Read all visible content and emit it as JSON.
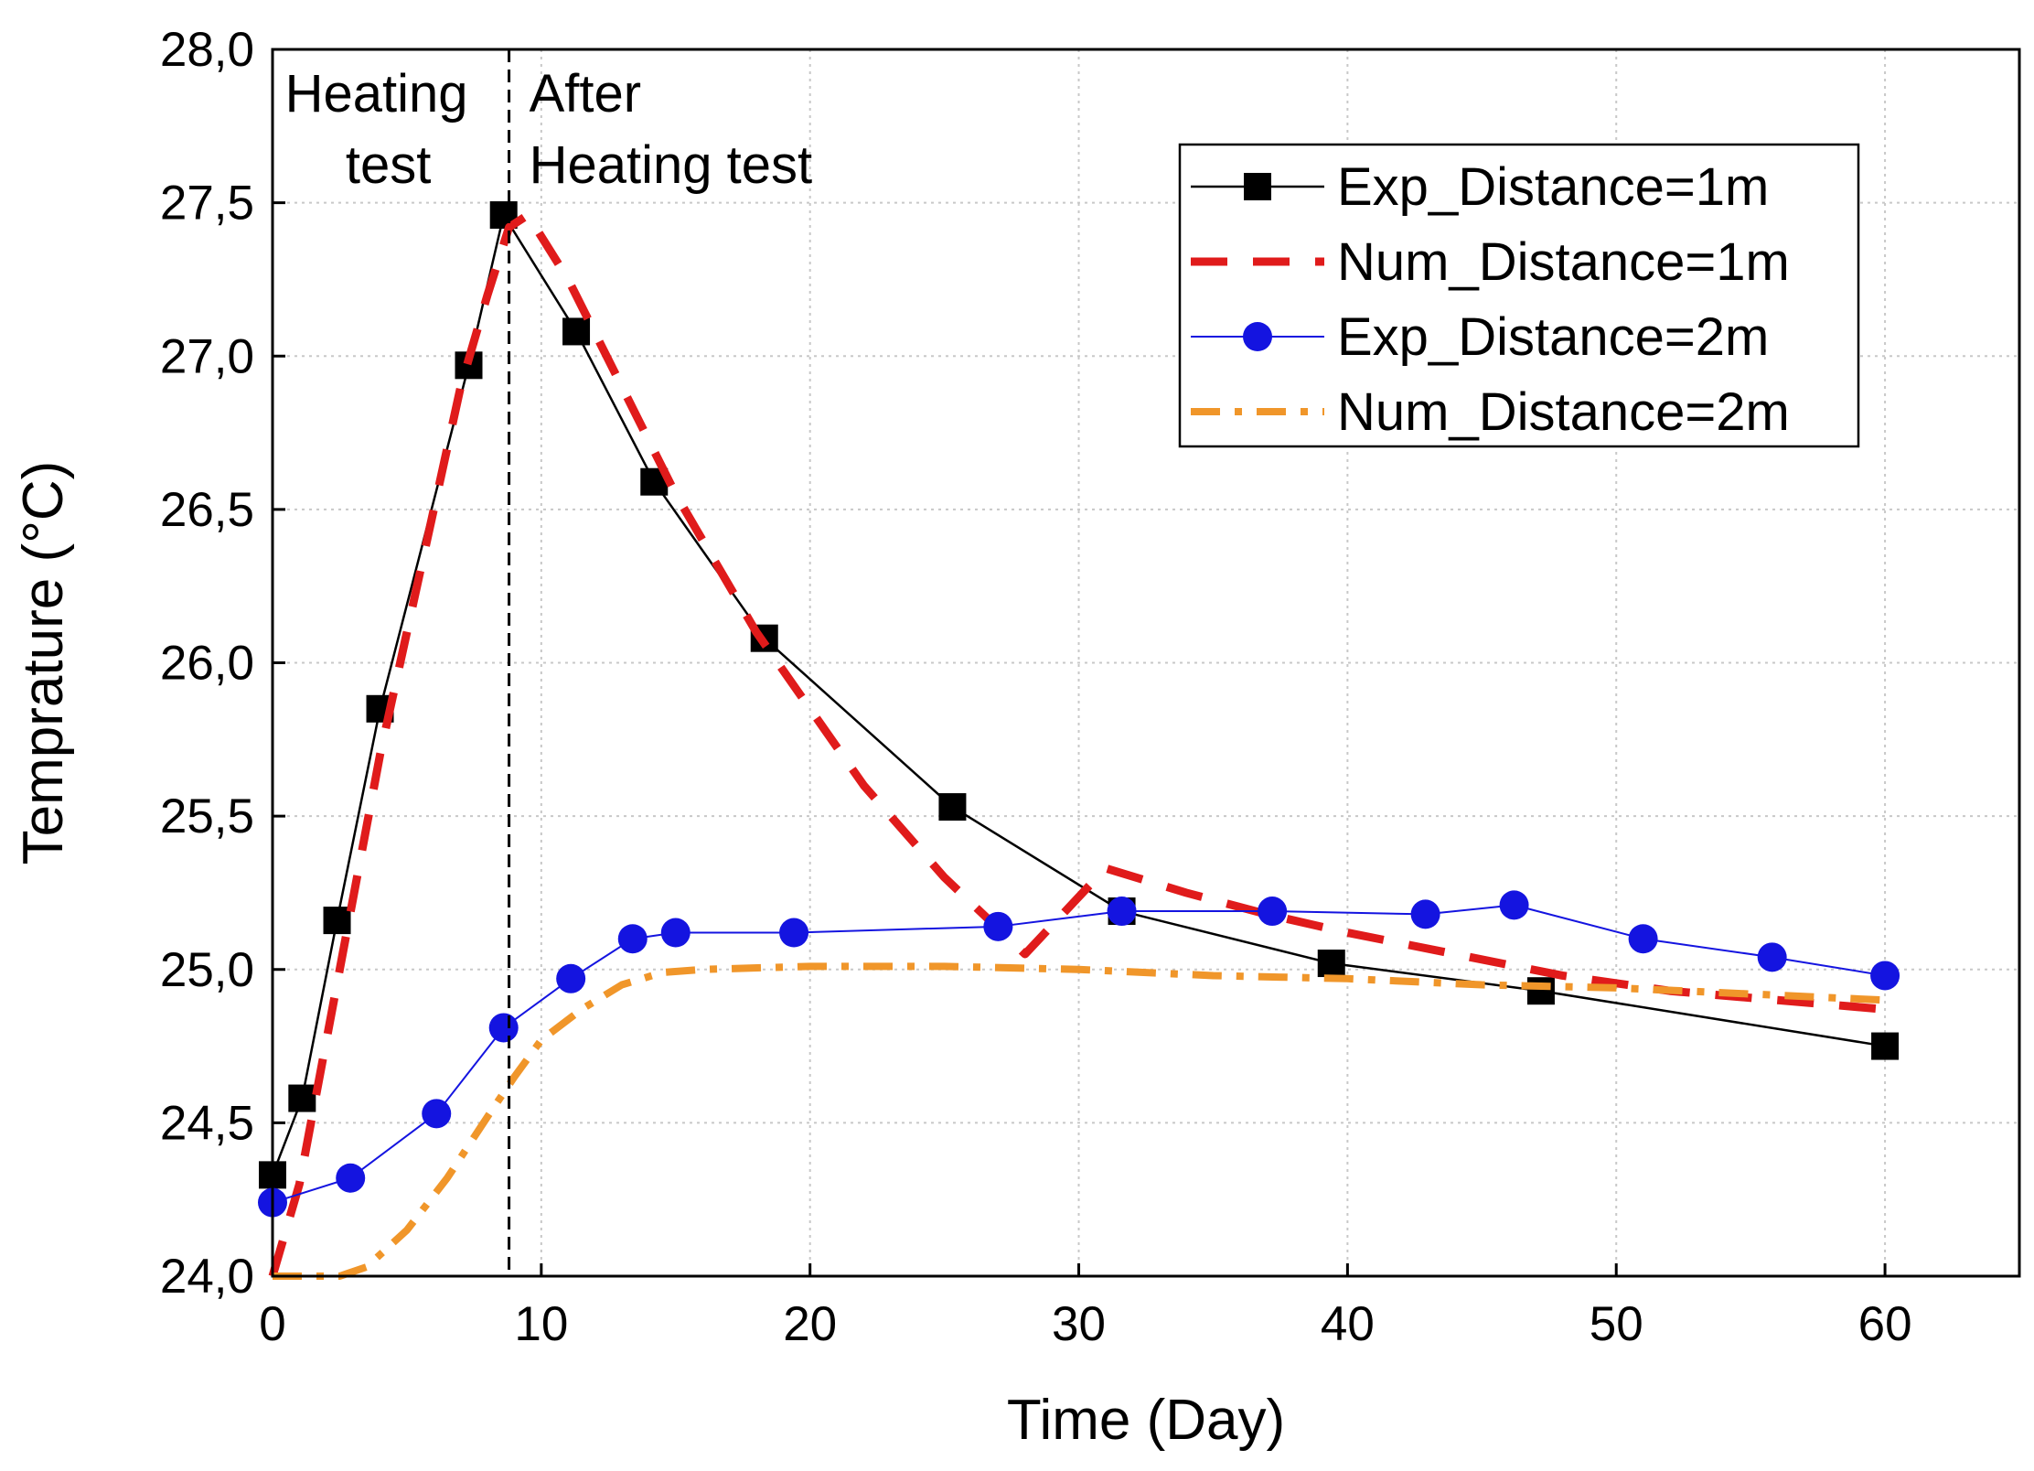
{
  "chart_data": {
    "type": "line",
    "title": "",
    "xlabel": "Time (Day)",
    "ylabel": "Temprature (°C)",
    "xlim": [
      0,
      65
    ],
    "ylim": [
      24.0,
      28.0
    ],
    "xticks": [
      0,
      10,
      20,
      30,
      40,
      50,
      60
    ],
    "xtick_labels": [
      "0",
      "10",
      "20",
      "30",
      "40",
      "50",
      "60"
    ],
    "yticks": [
      24.0,
      24.5,
      25.0,
      25.5,
      26.0,
      26.5,
      27.0,
      27.5,
      28.0
    ],
    "ytick_labels": [
      "24,0",
      "24,5",
      "25,0",
      "25,5",
      "26,0",
      "26,5",
      "27,0",
      "27,5",
      "28,0"
    ],
    "grid": true,
    "legend_position": "top-right",
    "annotations": {
      "divider_x": 8.8,
      "left_line1": "Heating",
      "left_line2": "test",
      "right_line1": "After",
      "right_line2": "Heating test"
    },
    "series": [
      {
        "name": "Exp_Distance=1m",
        "style": "solid-square",
        "color": "#000000",
        "x": [
          0,
          1.1,
          2.4,
          4.0,
          7.3,
          8.6,
          11.3,
          14.2,
          18.3,
          25.3,
          31.6,
          39.4,
          47.2,
          60
        ],
        "y": [
          24.33,
          24.58,
          25.16,
          25.85,
          26.97,
          27.46,
          27.08,
          26.59,
          26.08,
          25.53,
          25.19,
          25.02,
          24.93,
          24.75
        ]
      },
      {
        "name": "Num_Distance=1m",
        "style": "dashed",
        "color": "#e01b1b",
        "x": [
          0,
          1.0,
          2.5,
          4.0,
          5.5,
          7.0,
          8.0,
          8.8,
          9.5,
          11,
          13,
          15,
          18,
          22,
          25,
          28,
          31,
          34,
          37,
          40,
          44,
          48,
          52,
          56,
          60
        ],
        "y": [
          24.0,
          24.3,
          25.0,
          25.7,
          26.3,
          26.9,
          27.2,
          27.42,
          27.46,
          27.25,
          26.9,
          26.55,
          26.1,
          25.6,
          25.3,
          25.05,
          25.33,
          25.25,
          25.18,
          25.12,
          25.05,
          24.98,
          24.93,
          24.9,
          24.87
        ]
      },
      {
        "name": "Exp_Distance=2m",
        "style": "solid-circle",
        "color": "#1414e0",
        "x": [
          0,
          2.9,
          6.1,
          8.6,
          11.1,
          13.4,
          15.0,
          19.4,
          27.0,
          31.6,
          37.2,
          42.9,
          46.2,
          51.0,
          55.8,
          60
        ],
        "y": [
          24.24,
          24.32,
          24.53,
          24.81,
          24.97,
          25.1,
          25.12,
          25.12,
          25.14,
          25.19,
          25.19,
          25.18,
          25.21,
          25.1,
          25.04,
          24.98
        ]
      },
      {
        "name": "Num_Distance=2m",
        "style": "dash-dot",
        "color": "#f0962a",
        "x": [
          0,
          1.5,
          2.5,
          3.5,
          5,
          6.5,
          8,
          9,
          10,
          11.5,
          13,
          14.5,
          16,
          20,
          25,
          30,
          35,
          40,
          45,
          50,
          55,
          60
        ],
        "y": [
          24.0,
          24.0,
          24.0,
          24.03,
          24.15,
          24.32,
          24.52,
          24.65,
          24.77,
          24.87,
          24.95,
          24.99,
          25.0,
          25.01,
          25.01,
          25.0,
          24.98,
          24.97,
          24.95,
          24.94,
          24.92,
          24.9
        ]
      }
    ]
  }
}
